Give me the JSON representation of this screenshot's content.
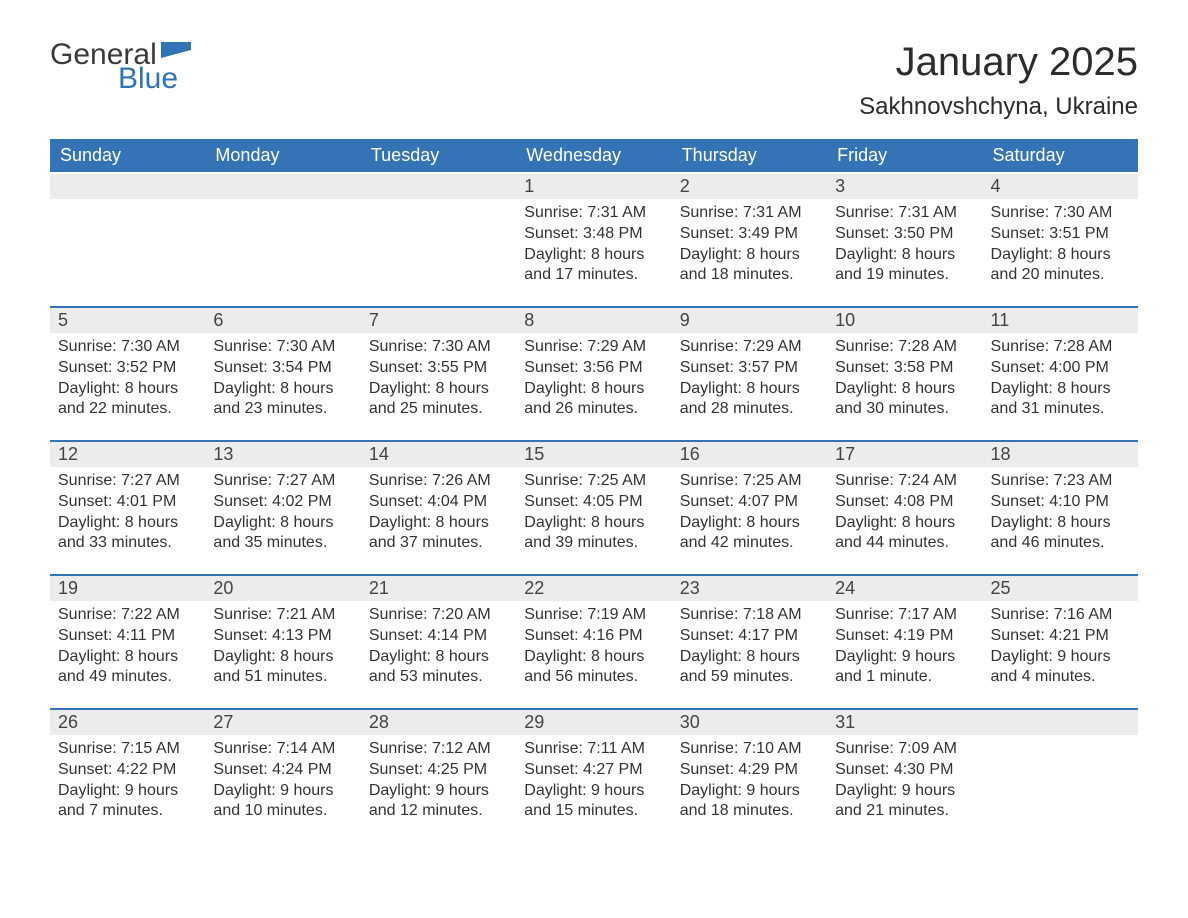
{
  "brand": {
    "word1": "General",
    "word2": "Blue",
    "logo_color": "#2f74b5",
    "text_color": "#3a3a3a"
  },
  "title": "January 2025",
  "location": "Sakhnovshchyna, Ukraine",
  "colors": {
    "header_bg": "#3573b7",
    "header_text": "#ffffff",
    "daynum_bg": "#ececec",
    "border_top": "#3573b7",
    "body_text": "#333333",
    "page_bg": "#ffffff"
  },
  "typography": {
    "title_fontsize": 40,
    "location_fontsize": 24,
    "weekday_fontsize": 18,
    "daynum_fontsize": 18,
    "body_fontsize": 16
  },
  "weekdays": [
    "Sunday",
    "Monday",
    "Tuesday",
    "Wednesday",
    "Thursday",
    "Friday",
    "Saturday"
  ],
  "weeks": [
    [
      {
        "day": "",
        "sunrise": "",
        "sunset": "",
        "daylight": ""
      },
      {
        "day": "",
        "sunrise": "",
        "sunset": "",
        "daylight": ""
      },
      {
        "day": "",
        "sunrise": "",
        "sunset": "",
        "daylight": ""
      },
      {
        "day": "1",
        "sunrise": "Sunrise: 7:31 AM",
        "sunset": "Sunset: 3:48 PM",
        "daylight": "Daylight: 8 hours and 17 minutes."
      },
      {
        "day": "2",
        "sunrise": "Sunrise: 7:31 AM",
        "sunset": "Sunset: 3:49 PM",
        "daylight": "Daylight: 8 hours and 18 minutes."
      },
      {
        "day": "3",
        "sunrise": "Sunrise: 7:31 AM",
        "sunset": "Sunset: 3:50 PM",
        "daylight": "Daylight: 8 hours and 19 minutes."
      },
      {
        "day": "4",
        "sunrise": "Sunrise: 7:30 AM",
        "sunset": "Sunset: 3:51 PM",
        "daylight": "Daylight: 8 hours and 20 minutes."
      }
    ],
    [
      {
        "day": "5",
        "sunrise": "Sunrise: 7:30 AM",
        "sunset": "Sunset: 3:52 PM",
        "daylight": "Daylight: 8 hours and 22 minutes."
      },
      {
        "day": "6",
        "sunrise": "Sunrise: 7:30 AM",
        "sunset": "Sunset: 3:54 PM",
        "daylight": "Daylight: 8 hours and 23 minutes."
      },
      {
        "day": "7",
        "sunrise": "Sunrise: 7:30 AM",
        "sunset": "Sunset: 3:55 PM",
        "daylight": "Daylight: 8 hours and 25 minutes."
      },
      {
        "day": "8",
        "sunrise": "Sunrise: 7:29 AM",
        "sunset": "Sunset: 3:56 PM",
        "daylight": "Daylight: 8 hours and 26 minutes."
      },
      {
        "day": "9",
        "sunrise": "Sunrise: 7:29 AM",
        "sunset": "Sunset: 3:57 PM",
        "daylight": "Daylight: 8 hours and 28 minutes."
      },
      {
        "day": "10",
        "sunrise": "Sunrise: 7:28 AM",
        "sunset": "Sunset: 3:58 PM",
        "daylight": "Daylight: 8 hours and 30 minutes."
      },
      {
        "day": "11",
        "sunrise": "Sunrise: 7:28 AM",
        "sunset": "Sunset: 4:00 PM",
        "daylight": "Daylight: 8 hours and 31 minutes."
      }
    ],
    [
      {
        "day": "12",
        "sunrise": "Sunrise: 7:27 AM",
        "sunset": "Sunset: 4:01 PM",
        "daylight": "Daylight: 8 hours and 33 minutes."
      },
      {
        "day": "13",
        "sunrise": "Sunrise: 7:27 AM",
        "sunset": "Sunset: 4:02 PM",
        "daylight": "Daylight: 8 hours and 35 minutes."
      },
      {
        "day": "14",
        "sunrise": "Sunrise: 7:26 AM",
        "sunset": "Sunset: 4:04 PM",
        "daylight": "Daylight: 8 hours and 37 minutes."
      },
      {
        "day": "15",
        "sunrise": "Sunrise: 7:25 AM",
        "sunset": "Sunset: 4:05 PM",
        "daylight": "Daylight: 8 hours and 39 minutes."
      },
      {
        "day": "16",
        "sunrise": "Sunrise: 7:25 AM",
        "sunset": "Sunset: 4:07 PM",
        "daylight": "Daylight: 8 hours and 42 minutes."
      },
      {
        "day": "17",
        "sunrise": "Sunrise: 7:24 AM",
        "sunset": "Sunset: 4:08 PM",
        "daylight": "Daylight: 8 hours and 44 minutes."
      },
      {
        "day": "18",
        "sunrise": "Sunrise: 7:23 AM",
        "sunset": "Sunset: 4:10 PM",
        "daylight": "Daylight: 8 hours and 46 minutes."
      }
    ],
    [
      {
        "day": "19",
        "sunrise": "Sunrise: 7:22 AM",
        "sunset": "Sunset: 4:11 PM",
        "daylight": "Daylight: 8 hours and 49 minutes."
      },
      {
        "day": "20",
        "sunrise": "Sunrise: 7:21 AM",
        "sunset": "Sunset: 4:13 PM",
        "daylight": "Daylight: 8 hours and 51 minutes."
      },
      {
        "day": "21",
        "sunrise": "Sunrise: 7:20 AM",
        "sunset": "Sunset: 4:14 PM",
        "daylight": "Daylight: 8 hours and 53 minutes."
      },
      {
        "day": "22",
        "sunrise": "Sunrise: 7:19 AM",
        "sunset": "Sunset: 4:16 PM",
        "daylight": "Daylight: 8 hours and 56 minutes."
      },
      {
        "day": "23",
        "sunrise": "Sunrise: 7:18 AM",
        "sunset": "Sunset: 4:17 PM",
        "daylight": "Daylight: 8 hours and 59 minutes."
      },
      {
        "day": "24",
        "sunrise": "Sunrise: 7:17 AM",
        "sunset": "Sunset: 4:19 PM",
        "daylight": "Daylight: 9 hours and 1 minute."
      },
      {
        "day": "25",
        "sunrise": "Sunrise: 7:16 AM",
        "sunset": "Sunset: 4:21 PM",
        "daylight": "Daylight: 9 hours and 4 minutes."
      }
    ],
    [
      {
        "day": "26",
        "sunrise": "Sunrise: 7:15 AM",
        "sunset": "Sunset: 4:22 PM",
        "daylight": "Daylight: 9 hours and 7 minutes."
      },
      {
        "day": "27",
        "sunrise": "Sunrise: 7:14 AM",
        "sunset": "Sunset: 4:24 PM",
        "daylight": "Daylight: 9 hours and 10 minutes."
      },
      {
        "day": "28",
        "sunrise": "Sunrise: 7:12 AM",
        "sunset": "Sunset: 4:25 PM",
        "daylight": "Daylight: 9 hours and 12 minutes."
      },
      {
        "day": "29",
        "sunrise": "Sunrise: 7:11 AM",
        "sunset": "Sunset: 4:27 PM",
        "daylight": "Daylight: 9 hours and 15 minutes."
      },
      {
        "day": "30",
        "sunrise": "Sunrise: 7:10 AM",
        "sunset": "Sunset: 4:29 PM",
        "daylight": "Daylight: 9 hours and 18 minutes."
      },
      {
        "day": "31",
        "sunrise": "Sunrise: 7:09 AM",
        "sunset": "Sunset: 4:30 PM",
        "daylight": "Daylight: 9 hours and 21 minutes."
      },
      {
        "day": "",
        "sunrise": "",
        "sunset": "",
        "daylight": ""
      }
    ]
  ]
}
